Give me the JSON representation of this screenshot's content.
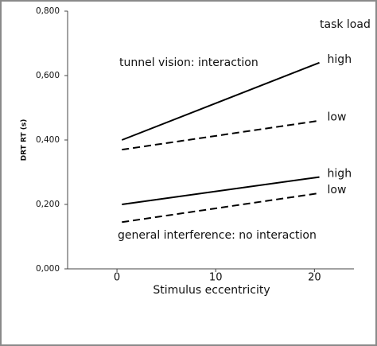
{
  "chart_data": {
    "type": "line",
    "xlabel": "Stimulus eccentricity",
    "ylabel": "DRT RT (s)",
    "annotations": [
      "task load",
      "tunnel vision: interaction",
      "general interference: no interaction"
    ],
    "xlim": [
      -5,
      24
    ],
    "ylim": [
      0,
      0.8
    ],
    "xticks": [
      0,
      10,
      20
    ],
    "yticks": [
      {
        "value": 0,
        "label": "0,000"
      },
      {
        "value": 0.2,
        "label": "0,200"
      },
      {
        "value": 0.4,
        "label": "0,400"
      },
      {
        "value": 0.6,
        "label": "0,600"
      },
      {
        "value": 0.8,
        "label": "0,800"
      }
    ],
    "grid": false,
    "series": [
      {
        "name": "high",
        "color": "#000000",
        "style": "solid",
        "x": [
          0.5,
          20.5
        ],
        "values": [
          0.4,
          0.64
        ]
      },
      {
        "name": "low",
        "color": "#000000",
        "style": "dashed",
        "x": [
          0.5,
          20.5
        ],
        "values": [
          0.37,
          0.46
        ]
      },
      {
        "name": "high",
        "color": "#000000",
        "style": "solid",
        "x": [
          0.5,
          20.5
        ],
        "values": [
          0.2,
          0.285
        ]
      },
      {
        "name": "low",
        "color": "#000000",
        "style": "dashed",
        "x": [
          0.5,
          20.5
        ],
        "values": [
          0.145,
          0.235
        ]
      }
    ]
  }
}
